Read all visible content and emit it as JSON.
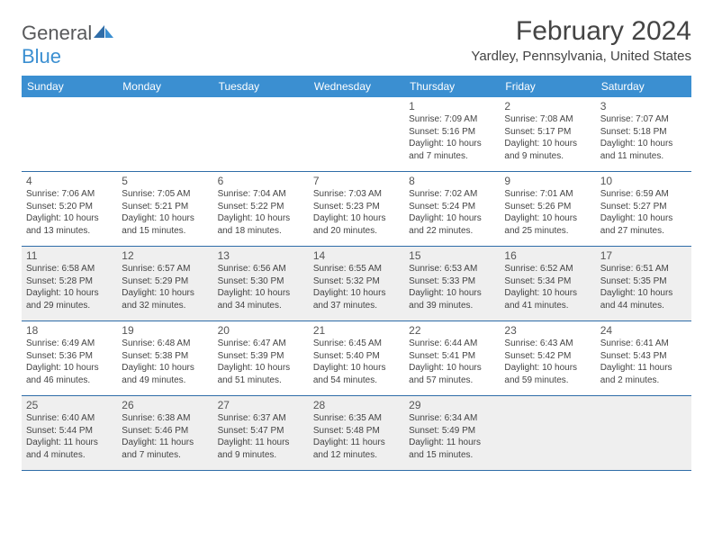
{
  "logo": {
    "general": "General",
    "blue": "Blue"
  },
  "title": "February 2024",
  "location": "Yardley, Pennsylvania, United States",
  "colors": {
    "header_bg": "#3b8fd1",
    "header_text": "#ffffff",
    "week_border": "#2f6da8",
    "shaded_bg": "#efefef",
    "body_text": "#444444"
  },
  "weekdays": [
    "Sunday",
    "Monday",
    "Tuesday",
    "Wednesday",
    "Thursday",
    "Friday",
    "Saturday"
  ],
  "weeks": [
    [
      {
        "num": "",
        "sunrise": "",
        "sunset": "",
        "daylight": ""
      },
      {
        "num": "",
        "sunrise": "",
        "sunset": "",
        "daylight": ""
      },
      {
        "num": "",
        "sunrise": "",
        "sunset": "",
        "daylight": ""
      },
      {
        "num": "",
        "sunrise": "",
        "sunset": "",
        "daylight": ""
      },
      {
        "num": "1",
        "sunrise": "Sunrise: 7:09 AM",
        "sunset": "Sunset: 5:16 PM",
        "daylight": "Daylight: 10 hours and 7 minutes."
      },
      {
        "num": "2",
        "sunrise": "Sunrise: 7:08 AM",
        "sunset": "Sunset: 5:17 PM",
        "daylight": "Daylight: 10 hours and 9 minutes."
      },
      {
        "num": "3",
        "sunrise": "Sunrise: 7:07 AM",
        "sunset": "Sunset: 5:18 PM",
        "daylight": "Daylight: 10 hours and 11 minutes."
      }
    ],
    [
      {
        "num": "4",
        "sunrise": "Sunrise: 7:06 AM",
        "sunset": "Sunset: 5:20 PM",
        "daylight": "Daylight: 10 hours and 13 minutes."
      },
      {
        "num": "5",
        "sunrise": "Sunrise: 7:05 AM",
        "sunset": "Sunset: 5:21 PM",
        "daylight": "Daylight: 10 hours and 15 minutes."
      },
      {
        "num": "6",
        "sunrise": "Sunrise: 7:04 AM",
        "sunset": "Sunset: 5:22 PM",
        "daylight": "Daylight: 10 hours and 18 minutes."
      },
      {
        "num": "7",
        "sunrise": "Sunrise: 7:03 AM",
        "sunset": "Sunset: 5:23 PM",
        "daylight": "Daylight: 10 hours and 20 minutes."
      },
      {
        "num": "8",
        "sunrise": "Sunrise: 7:02 AM",
        "sunset": "Sunset: 5:24 PM",
        "daylight": "Daylight: 10 hours and 22 minutes."
      },
      {
        "num": "9",
        "sunrise": "Sunrise: 7:01 AM",
        "sunset": "Sunset: 5:26 PM",
        "daylight": "Daylight: 10 hours and 25 minutes."
      },
      {
        "num": "10",
        "sunrise": "Sunrise: 6:59 AM",
        "sunset": "Sunset: 5:27 PM",
        "daylight": "Daylight: 10 hours and 27 minutes."
      }
    ],
    [
      {
        "num": "11",
        "sunrise": "Sunrise: 6:58 AM",
        "sunset": "Sunset: 5:28 PM",
        "daylight": "Daylight: 10 hours and 29 minutes."
      },
      {
        "num": "12",
        "sunrise": "Sunrise: 6:57 AM",
        "sunset": "Sunset: 5:29 PM",
        "daylight": "Daylight: 10 hours and 32 minutes."
      },
      {
        "num": "13",
        "sunrise": "Sunrise: 6:56 AM",
        "sunset": "Sunset: 5:30 PM",
        "daylight": "Daylight: 10 hours and 34 minutes."
      },
      {
        "num": "14",
        "sunrise": "Sunrise: 6:55 AM",
        "sunset": "Sunset: 5:32 PM",
        "daylight": "Daylight: 10 hours and 37 minutes."
      },
      {
        "num": "15",
        "sunrise": "Sunrise: 6:53 AM",
        "sunset": "Sunset: 5:33 PM",
        "daylight": "Daylight: 10 hours and 39 minutes."
      },
      {
        "num": "16",
        "sunrise": "Sunrise: 6:52 AM",
        "sunset": "Sunset: 5:34 PM",
        "daylight": "Daylight: 10 hours and 41 minutes."
      },
      {
        "num": "17",
        "sunrise": "Sunrise: 6:51 AM",
        "sunset": "Sunset: 5:35 PM",
        "daylight": "Daylight: 10 hours and 44 minutes."
      }
    ],
    [
      {
        "num": "18",
        "sunrise": "Sunrise: 6:49 AM",
        "sunset": "Sunset: 5:36 PM",
        "daylight": "Daylight: 10 hours and 46 minutes."
      },
      {
        "num": "19",
        "sunrise": "Sunrise: 6:48 AM",
        "sunset": "Sunset: 5:38 PM",
        "daylight": "Daylight: 10 hours and 49 minutes."
      },
      {
        "num": "20",
        "sunrise": "Sunrise: 6:47 AM",
        "sunset": "Sunset: 5:39 PM",
        "daylight": "Daylight: 10 hours and 51 minutes."
      },
      {
        "num": "21",
        "sunrise": "Sunrise: 6:45 AM",
        "sunset": "Sunset: 5:40 PM",
        "daylight": "Daylight: 10 hours and 54 minutes."
      },
      {
        "num": "22",
        "sunrise": "Sunrise: 6:44 AM",
        "sunset": "Sunset: 5:41 PM",
        "daylight": "Daylight: 10 hours and 57 minutes."
      },
      {
        "num": "23",
        "sunrise": "Sunrise: 6:43 AM",
        "sunset": "Sunset: 5:42 PM",
        "daylight": "Daylight: 10 hours and 59 minutes."
      },
      {
        "num": "24",
        "sunrise": "Sunrise: 6:41 AM",
        "sunset": "Sunset: 5:43 PM",
        "daylight": "Daylight: 11 hours and 2 minutes."
      }
    ],
    [
      {
        "num": "25",
        "sunrise": "Sunrise: 6:40 AM",
        "sunset": "Sunset: 5:44 PM",
        "daylight": "Daylight: 11 hours and 4 minutes."
      },
      {
        "num": "26",
        "sunrise": "Sunrise: 6:38 AM",
        "sunset": "Sunset: 5:46 PM",
        "daylight": "Daylight: 11 hours and 7 minutes."
      },
      {
        "num": "27",
        "sunrise": "Sunrise: 6:37 AM",
        "sunset": "Sunset: 5:47 PM",
        "daylight": "Daylight: 11 hours and 9 minutes."
      },
      {
        "num": "28",
        "sunrise": "Sunrise: 6:35 AM",
        "sunset": "Sunset: 5:48 PM",
        "daylight": "Daylight: 11 hours and 12 minutes."
      },
      {
        "num": "29",
        "sunrise": "Sunrise: 6:34 AM",
        "sunset": "Sunset: 5:49 PM",
        "daylight": "Daylight: 11 hours and 15 minutes."
      },
      {
        "num": "",
        "sunrise": "",
        "sunset": "",
        "daylight": ""
      },
      {
        "num": "",
        "sunrise": "",
        "sunset": "",
        "daylight": ""
      }
    ]
  ]
}
